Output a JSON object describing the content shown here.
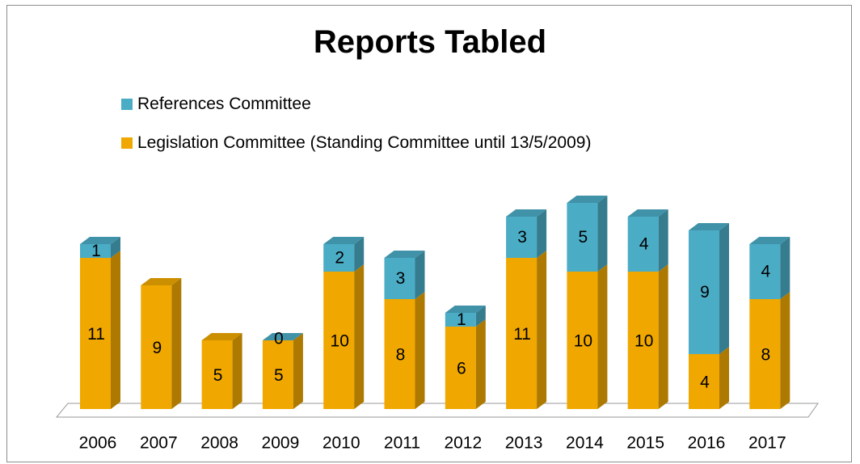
{
  "chart_data": {
    "type": "bar",
    "stacked": true,
    "three_d": true,
    "title": "Reports Tabled",
    "categories": [
      "2006",
      "2007",
      "2008",
      "2009",
      "2010",
      "2011",
      "2012",
      "2013",
      "2014",
      "2015",
      "2016",
      "2017"
    ],
    "series": [
      {
        "name": "Legislation Committee (Standing Committee until 13/5/2009)",
        "color": "#f0a800",
        "values": [
          11,
          9,
          5,
          5,
          10,
          8,
          6,
          11,
          10,
          10,
          4,
          8
        ]
      },
      {
        "name": "References Committee",
        "color": "#4bacc6",
        "values": [
          1,
          null,
          null,
          0,
          2,
          3,
          1,
          3,
          5,
          4,
          9,
          4
        ]
      }
    ],
    "data_labels": true,
    "legend_position": "top-left",
    "grid": false
  },
  "legend": {
    "items": [
      {
        "label": "References Committee",
        "color": "#4bacc6"
      },
      {
        "label": "Legislation Committee (Standing Committee until 13/5/2009)",
        "color": "#f0a800"
      }
    ]
  }
}
